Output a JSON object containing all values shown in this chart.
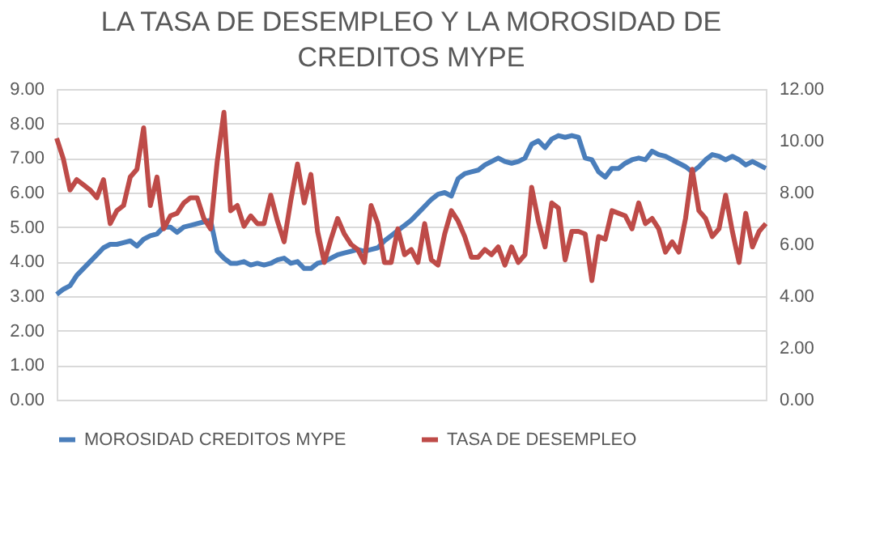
{
  "chart_data": {
    "type": "line",
    "title": "LA TASA DE DESEMPLEO Y LA MOROSIDAD DE CREDITOS MYPE",
    "categories": [
      null,
      null,
      null,
      null,
      null,
      null,
      null,
      null,
      null,
      null,
      null,
      null,
      null,
      null,
      null,
      null,
      null,
      null,
      null,
      null,
      null,
      null,
      null,
      null,
      null,
      null,
      null,
      null,
      null,
      null,
      null,
      null,
      null,
      null,
      null,
      null,
      null,
      null,
      null,
      null,
      null,
      null,
      null,
      null,
      null,
      null,
      null,
      null,
      null,
      null,
      null,
      null,
      null,
      null,
      null,
      null,
      null,
      null,
      null,
      null,
      null,
      null,
      null,
      null,
      null,
      null,
      null,
      null,
      null,
      null,
      null,
      null,
      null,
      null,
      null,
      null,
      null,
      null,
      null,
      null,
      null,
      null,
      null,
      null,
      null,
      null,
      null,
      null,
      null,
      null,
      null,
      null,
      null,
      null,
      null,
      null,
      null,
      null,
      null,
      null,
      null,
      null,
      null,
      null,
      null,
      null,
      null
    ],
    "series": [
      {
        "name": "MOROSIDAD CREDITOS MYPE",
        "color": "#4a7ebb",
        "values": [
          3.05,
          3.2,
          3.3,
          3.6,
          3.8,
          4.0,
          4.2,
          4.4,
          4.5,
          4.5,
          4.55,
          4.6,
          4.45,
          4.65,
          4.75,
          4.8,
          5.0,
          5.0,
          4.85,
          5.0,
          5.05,
          5.1,
          5.15,
          5.2,
          4.3,
          4.1,
          3.95,
          3.95,
          4.0,
          3.9,
          3.95,
          3.9,
          3.95,
          4.05,
          4.1,
          3.95,
          4.0,
          3.8,
          3.8,
          3.95,
          4.0,
          4.1,
          4.2,
          4.25,
          4.3,
          4.35,
          4.3,
          4.35,
          4.4,
          4.6,
          4.75,
          4.9,
          5.05,
          5.2,
          5.4,
          5.6,
          5.8,
          5.95,
          6.0,
          5.9,
          6.4,
          6.55,
          6.6,
          6.65,
          6.8,
          6.9,
          7.0,
          6.9,
          6.85,
          6.9,
          7.0,
          7.4,
          7.5,
          7.3,
          7.55,
          7.65,
          7.6,
          7.65,
          7.6,
          7.0,
          6.95,
          6.6,
          6.45,
          6.7,
          6.7,
          6.85,
          6.95,
          7.0,
          6.95,
          7.2,
          7.1,
          7.05,
          6.95,
          6.85,
          6.75,
          6.6,
          6.75,
          6.95,
          7.1,
          7.05,
          6.95,
          7.05,
          6.95,
          6.8,
          6.9,
          6.8,
          6.7
        ]
      },
      {
        "name": "TASA DE DESEMPLEO",
        "color": "#be4b48",
        "axis": "y2",
        "values": [
          10.1,
          9.3,
          8.1,
          8.5,
          8.3,
          8.1,
          7.8,
          8.5,
          6.8,
          7.3,
          7.5,
          8.6,
          8.9,
          10.5,
          7.5,
          8.6,
          6.6,
          7.1,
          7.2,
          7.6,
          7.8,
          7.8,
          7.0,
          6.6,
          9.2,
          11.1,
          7.3,
          7.5,
          6.7,
          7.1,
          6.8,
          6.8,
          7.9,
          6.9,
          6.1,
          7.7,
          9.1,
          7.6,
          8.7,
          6.5,
          5.3,
          6.2,
          7.0,
          6.4,
          6.0,
          5.8,
          5.3,
          7.5,
          6.8,
          5.3,
          5.3,
          6.6,
          5.6,
          5.8,
          5.3,
          6.8,
          5.4,
          5.2,
          6.4,
          7.3,
          6.9,
          6.3,
          5.5,
          5.5,
          5.8,
          5.6,
          5.9,
          5.2,
          5.9,
          5.3,
          5.6,
          8.2,
          6.9,
          5.9,
          7.6,
          7.4,
          5.4,
          6.5,
          6.5,
          6.4,
          4.6,
          6.3,
          6.2,
          7.3,
          7.2,
          7.1,
          6.6,
          7.6,
          6.8,
          7.0,
          6.6,
          5.7,
          6.1,
          5.7,
          7.0,
          8.9,
          7.3,
          7.0,
          6.3,
          6.6,
          7.9,
          6.5,
          5.3,
          7.2,
          5.9,
          6.5,
          6.8
        ]
      }
    ],
    "ylim": [
      0,
      9
    ],
    "yticks": [
      {
        "value": 0,
        "label": "0.00"
      },
      {
        "value": 1,
        "label": "1.00"
      },
      {
        "value": 2,
        "label": "2.00"
      },
      {
        "value": 3,
        "label": "3.00"
      },
      {
        "value": 4,
        "label": "4.00"
      },
      {
        "value": 5,
        "label": "5.00"
      },
      {
        "value": 6,
        "label": "6.00"
      },
      {
        "value": 7,
        "label": "7.00"
      },
      {
        "value": 8,
        "label": "8.00"
      },
      {
        "value": 9,
        "label": "9.00"
      }
    ],
    "y2lim": [
      0,
      12
    ],
    "y2ticks": [
      {
        "value": 0,
        "label": "0.00"
      },
      {
        "value": 2,
        "label": "2.00"
      },
      {
        "value": 4,
        "label": "4.00"
      },
      {
        "value": 6,
        "label": "6.00"
      },
      {
        "value": 8,
        "label": "8.00"
      },
      {
        "value": 10,
        "label": "10.00"
      },
      {
        "value": 12,
        "label": "12.00"
      }
    ],
    "grid": "y",
    "legend": "bottom",
    "tick_labels": "y",
    "marker": "none",
    "line_style": "solid"
  }
}
